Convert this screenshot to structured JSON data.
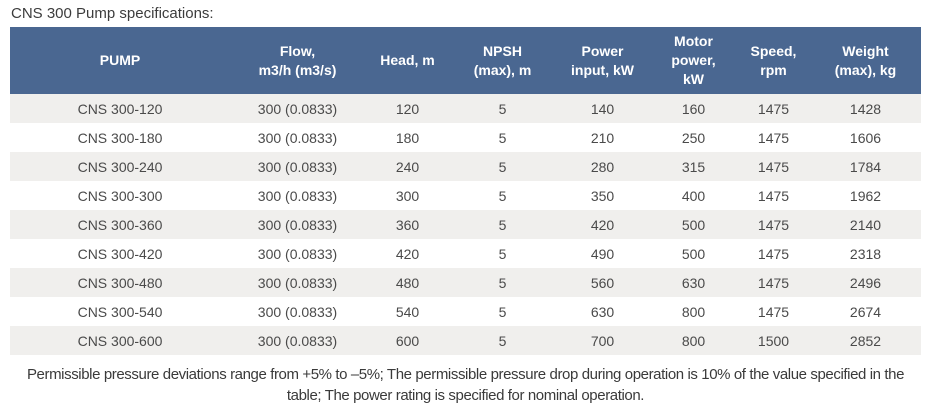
{
  "title": "CNS 300 Pump specifications:",
  "colors": {
    "header_bg": "#4a6791",
    "header_text": "#ffffff",
    "row_alt_bg": "#f0efed",
    "body_text": "#4a4a4a"
  },
  "chart_data": {
    "type": "table",
    "title": "CNS 300 Pump specifications",
    "columns": [
      "PUMP",
      "Flow,\nm3/h (m3/s)",
      "Head, m",
      "NPSH\n(max), m",
      "Power\ninput, kW",
      "Motor\npower,\nkW",
      "Speed,\nrpm",
      "Weight\n(max), kg"
    ],
    "rows": [
      [
        "CNS 300-120",
        "300 (0.0833)",
        "120",
        "5",
        "140",
        "160",
        "1475",
        "1428"
      ],
      [
        "CNS 300-180",
        "300 (0.0833)",
        "180",
        "5",
        "210",
        "250",
        "1475",
        "1606"
      ],
      [
        "CNS 300-240",
        "300 (0.0833)",
        "240",
        "5",
        "280",
        "315",
        "1475",
        "1784"
      ],
      [
        "CNS 300-300",
        "300 (0.0833)",
        "300",
        "5",
        "350",
        "400",
        "1475",
        "1962"
      ],
      [
        "CNS 300-360",
        "300 (0.0833)",
        "360",
        "5",
        "420",
        "500",
        "1475",
        "2140"
      ],
      [
        "CNS 300-420",
        "300 (0.0833)",
        "420",
        "5",
        "490",
        "500",
        "1475",
        "2318"
      ],
      [
        "CNS 300-480",
        "300 (0.0833)",
        "480",
        "5",
        "560",
        "630",
        "1475",
        "2496"
      ],
      [
        "CNS 300-540",
        "300 (0.0833)",
        "540",
        "5",
        "630",
        "800",
        "1475",
        "2674"
      ],
      [
        "CNS 300-600",
        "300 (0.0833)",
        "600",
        "5",
        "700",
        "800",
        "1500",
        "2852"
      ]
    ]
  },
  "footnote": "Permissible pressure deviations range from +5% to –5%; The permissible pressure drop during operation is 10% of the value specified in the table; The power rating is specified for nominal operation."
}
